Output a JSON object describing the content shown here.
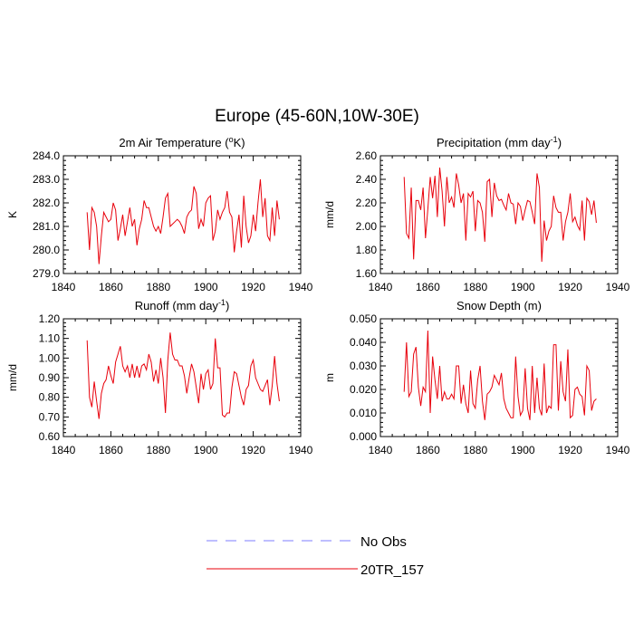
{
  "title": "Europe (45-60N,10W-30E)",
  "colors": {
    "model": "#e8000b",
    "obs": "#7d7dff"
  },
  "legend": [
    {
      "label": "No Obs",
      "style": "dashed",
      "color": "#7d7dff"
    },
    {
      "label": "20TR_157",
      "style": "solid",
      "color": "#e8000b"
    }
  ],
  "chart_data": [
    {
      "type": "line",
      "title_pre": "2m Air Temperature (",
      "title_sup": "o",
      "title_post": "K)",
      "ylabel": "K",
      "xlim": [
        1840,
        1940
      ],
      "ylim": [
        279.0,
        284.0
      ],
      "xticks": [
        1840,
        1860,
        1880,
        1900,
        1920,
        1940
      ],
      "yticks": [
        "279.0",
        "280.0",
        "281.0",
        "282.0",
        "283.0",
        "284.0"
      ],
      "series": [
        {
          "name": "20TR_157",
          "x_start": 1850,
          "values": [
            281.6,
            280.0,
            281.8,
            281.6,
            281.0,
            279.4,
            280.6,
            281.6,
            281.4,
            281.2,
            281.3,
            282.0,
            281.7,
            280.4,
            280.9,
            281.5,
            280.6,
            281.2,
            281.8,
            281.0,
            281.3,
            280.2,
            280.9,
            281.3,
            282.1,
            281.8,
            281.8,
            281.4,
            281.0,
            280.8,
            281.0,
            280.7,
            281.4,
            282.2,
            282.4,
            281.0,
            281.1,
            281.2,
            281.3,
            281.2,
            281.0,
            280.7,
            281.4,
            281.6,
            281.7,
            282.7,
            282.4,
            280.9,
            281.3,
            281.0,
            282.0,
            282.2,
            282.3,
            280.4,
            280.8,
            281.7,
            281.3,
            281.6,
            281.8,
            282.5,
            281.6,
            281.4,
            279.9,
            280.8,
            281.5,
            280.1,
            282.3,
            281.0,
            280.3,
            280.6,
            281.5,
            280.8,
            282.0,
            283.0,
            281.4,
            282.2,
            280.6,
            280.4,
            281.8,
            280.6,
            282.1,
            281.3
          ]
        }
      ]
    },
    {
      "type": "line",
      "title_pre": "Precipitation (mm day",
      "title_sup": "-1",
      "title_post": ")",
      "ylabel": "mm/d",
      "xlim": [
        1840,
        1940
      ],
      "ylim": [
        1.6,
        2.6
      ],
      "xticks": [
        1840,
        1860,
        1880,
        1900,
        1920,
        1940
      ],
      "yticks": [
        "1.60",
        "1.80",
        "2.00",
        "2.20",
        "2.40",
        "2.60"
      ],
      "series": [
        {
          "name": "20TR_157",
          "x_start": 1850,
          "values": [
            2.42,
            1.94,
            1.9,
            2.33,
            1.72,
            2.22,
            2.22,
            2.14,
            2.33,
            1.9,
            2.15,
            2.42,
            2.24,
            2.43,
            2.08,
            2.5,
            2.3,
            2.0,
            2.42,
            2.2,
            2.25,
            2.16,
            2.45,
            2.35,
            2.2,
            2.28,
            1.88,
            2.28,
            2.25,
            2.3,
            1.96,
            2.22,
            2.2,
            2.12,
            1.87,
            2.38,
            2.4,
            2.08,
            2.37,
            2.26,
            2.22,
            2.23,
            2.18,
            2.14,
            2.28,
            2.2,
            2.19,
            2.02,
            2.2,
            2.17,
            2.05,
            2.14,
            2.22,
            2.21,
            2.12,
            2.02,
            2.45,
            2.33,
            1.7,
            2.05,
            1.88,
            1.96,
            2.0,
            2.26,
            2.16,
            2.12,
            2.12,
            1.88,
            2.04,
            2.12,
            2.28,
            2.04,
            2.08,
            2.01,
            1.97,
            2.22,
            1.88,
            2.24,
            2.21,
            2.1,
            2.22,
            2.03
          ]
        }
      ]
    },
    {
      "type": "line",
      "title_pre": "Runoff (mm day",
      "title_sup": "-1",
      "title_post": ")",
      "ylabel": "mm/d",
      "xlim": [
        1840,
        1940
      ],
      "ylim": [
        0.6,
        1.2
      ],
      "xticks": [
        1840,
        1860,
        1880,
        1900,
        1920,
        1940
      ],
      "yticks": [
        "0.60",
        "0.70",
        "0.80",
        "0.90",
        "1.00",
        "1.10",
        "1.20"
      ],
      "series": [
        {
          "name": "20TR_157",
          "x_start": 1850,
          "values": [
            1.09,
            0.8,
            0.75,
            0.88,
            0.78,
            0.69,
            0.82,
            0.87,
            0.89,
            0.96,
            0.91,
            0.87,
            0.98,
            1.02,
            1.06,
            0.96,
            0.93,
            0.96,
            0.9,
            0.97,
            0.9,
            0.96,
            0.9,
            0.96,
            0.97,
            0.94,
            1.02,
            0.98,
            0.88,
            0.94,
            0.87,
            1.0,
            0.9,
            0.72,
            0.99,
            1.13,
            1.02,
            0.99,
            0.99,
            0.96,
            0.96,
            0.91,
            0.82,
            0.9,
            0.97,
            0.93,
            0.85,
            0.77,
            0.92,
            0.84,
            0.92,
            0.94,
            0.84,
            0.87,
            1.1,
            0.95,
            0.95,
            0.71,
            0.7,
            0.72,
            0.72,
            0.85,
            0.93,
            0.92,
            0.86,
            0.8,
            0.76,
            0.84,
            0.86,
            0.96,
            0.99,
            0.9,
            0.87,
            0.84,
            0.83,
            0.86,
            0.89,
            0.76,
            0.86,
            1.01,
            0.87,
            0.78
          ]
        }
      ]
    },
    {
      "type": "line",
      "title_pre": "Snow Depth (m)",
      "title_sup": "",
      "title_post": "",
      "ylabel": "m",
      "xlim": [
        1840,
        1940
      ],
      "ylim": [
        0.0,
        0.05
      ],
      "xticks": [
        1840,
        1860,
        1880,
        1900,
        1920,
        1940
      ],
      "yticks": [
        "0.000",
        "0.010",
        "0.020",
        "0.030",
        "0.040",
        "0.050"
      ],
      "series": [
        {
          "name": "20TR_157",
          "x_start": 1850,
          "values": [
            0.019,
            0.04,
            0.017,
            0.019,
            0.035,
            0.038,
            0.021,
            0.013,
            0.021,
            0.019,
            0.045,
            0.01,
            0.034,
            0.024,
            0.016,
            0.03,
            0.015,
            0.019,
            0.016,
            0.016,
            0.018,
            0.016,
            0.03,
            0.03,
            0.014,
            0.022,
            0.014,
            0.01,
            0.028,
            0.014,
            0.012,
            0.024,
            0.03,
            0.015,
            0.007,
            0.018,
            0.019,
            0.021,
            0.026,
            0.024,
            0.022,
            0.027,
            0.016,
            0.012,
            0.01,
            0.008,
            0.008,
            0.034,
            0.017,
            0.009,
            0.011,
            0.029,
            0.012,
            0.007,
            0.03,
            0.01,
            0.025,
            0.012,
            0.009,
            0.031,
            0.01,
            0.013,
            0.012,
            0.039,
            0.039,
            0.011,
            0.032,
            0.019,
            0.015,
            0.037,
            0.008,
            0.009,
            0.02,
            0.021,
            0.018,
            0.017,
            0.009,
            0.03,
            0.028,
            0.011,
            0.015,
            0.016
          ]
        }
      ]
    }
  ]
}
